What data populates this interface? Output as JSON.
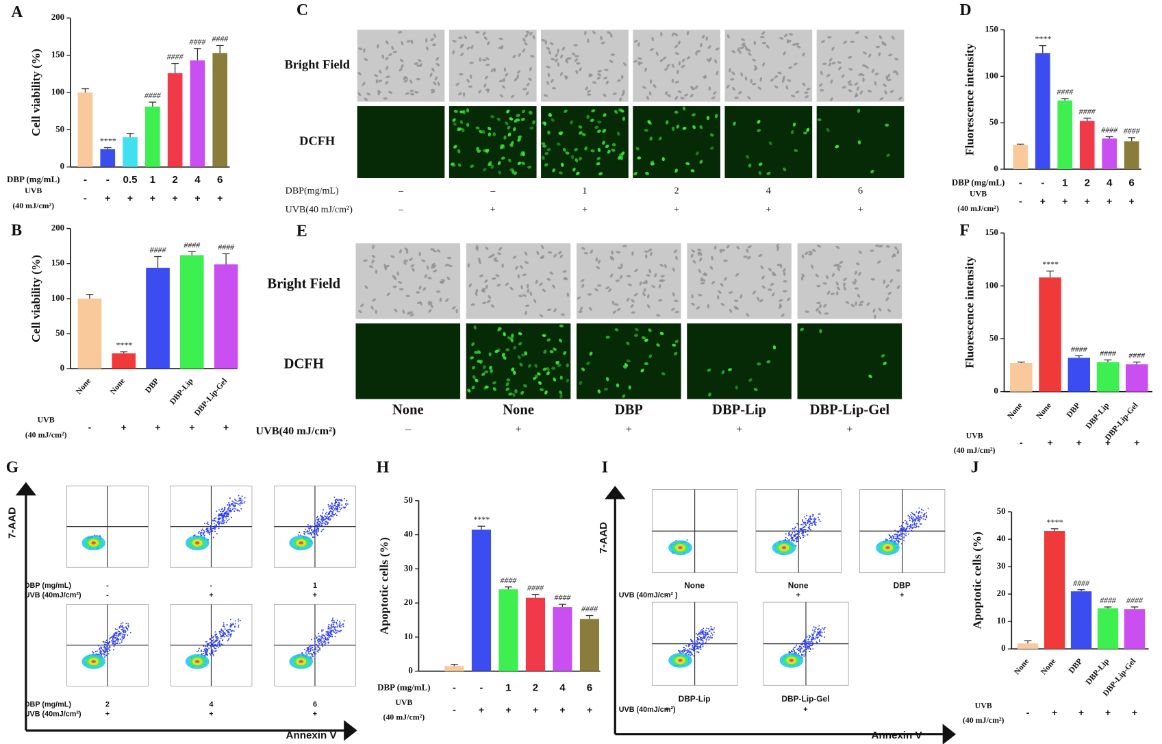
{
  "chart_data": [
    {
      "type": "bar",
      "panel": "A",
      "ylabel": "Cell viability (%)",
      "category_label": "DBP (mg/mL)",
      "categories": [
        "-",
        "-",
        "0.5",
        "1",
        "2",
        "4",
        "6"
      ],
      "values": [
        100,
        24,
        40,
        81,
        126,
        143,
        153
      ],
      "errors": [
        5,
        2,
        5,
        6,
        13,
        16,
        10
      ],
      "colors": [
        "#f9c89b",
        "#3b4cf0",
        "#41e0f0",
        "#3df04f",
        "#f03a4a",
        "#c94ff0",
        "#8a7c3a"
      ],
      "annotations": [
        null,
        "****",
        null,
        "####",
        "####",
        "####",
        "####"
      ],
      "row_label": [
        "UVB",
        "(40 mJ/cm²)"
      ],
      "row": [
        "-",
        "+",
        "+",
        "+",
        "+",
        "+",
        "+"
      ],
      "ylim": [
        0,
        200
      ],
      "yticks": [
        0,
        50,
        100,
        150,
        200
      ]
    },
    {
      "type": "bar",
      "panel": "B",
      "ylabel": "Cell viability (%)",
      "categories": [
        "None",
        "None",
        "DBP",
        "DBP-Lip",
        "DBP-Lip-Gel"
      ],
      "values": [
        100,
        22,
        144,
        162,
        149
      ],
      "errors": [
        6,
        2,
        16,
        5,
        15
      ],
      "colors": [
        "#f9c89b",
        "#f03a3a",
        "#3b4cf0",
        "#3df04f",
        "#c94ff0"
      ],
      "annotations": [
        null,
        "****",
        "####",
        "####",
        "####"
      ],
      "row_label": [
        "UVB",
        "(40 mJ/cm²)"
      ],
      "row": [
        "-",
        "+",
        "+",
        "+",
        "+"
      ],
      "ylim": [
        0,
        200
      ],
      "yticks": [
        0,
        50,
        100,
        150,
        200
      ]
    },
    {
      "type": "bar",
      "panel": "D",
      "ylabel": "Fluorescence intensity",
      "category_label": "DBP (mg/mL)",
      "categories": [
        "-",
        "-",
        "1",
        "2",
        "4",
        "6"
      ],
      "values": [
        26,
        125,
        74,
        52,
        33,
        30
      ],
      "errors": [
        1,
        8,
        2,
        3,
        2,
        4
      ],
      "colors": [
        "#f9c89b",
        "#3b4cf0",
        "#3df04f",
        "#f03a4a",
        "#c94ff0",
        "#8a7c3a"
      ],
      "annotations": [
        null,
        "****",
        "####",
        "####",
        "####",
        "####"
      ],
      "row_label": [
        "UVB",
        "(40 mJ/cm²)"
      ],
      "row": [
        "-",
        "+",
        "+",
        "+",
        "+",
        "+"
      ],
      "ylim": [
        0,
        150
      ],
      "yticks": [
        0,
        50,
        100,
        150
      ]
    },
    {
      "type": "bar",
      "panel": "F",
      "ylabel": "Fluorescence intensity",
      "categories": [
        "None",
        "None",
        "DBP",
        "DBP-Lip",
        "DBP-Lip-Gel"
      ],
      "values": [
        27,
        108,
        32,
        28,
        26
      ],
      "errors": [
        1,
        6,
        2,
        2,
        2
      ],
      "colors": [
        "#f9c89b",
        "#f03a3a",
        "#3b4cf0",
        "#3df04f",
        "#c94ff0"
      ],
      "annotations": [
        null,
        "****",
        "####",
        "####",
        "####"
      ],
      "row_label": [
        "UVB",
        "(40 mJ/cm²)"
      ],
      "row": [
        "-",
        "+",
        "+",
        "+",
        "+"
      ],
      "ylim": [
        0,
        150
      ],
      "yticks": [
        0,
        50,
        100,
        150
      ]
    },
    {
      "type": "bar",
      "panel": "H",
      "ylabel": "Apoptotic cells (%)",
      "category_label": "DBP (mg/mL)",
      "categories": [
        "-",
        "-",
        "1",
        "2",
        "4",
        "6"
      ],
      "values": [
        1.5,
        41.5,
        24,
        21.5,
        18.8,
        15.3
      ],
      "errors": [
        0.5,
        1,
        0.7,
        1,
        0.8,
        1
      ],
      "colors": [
        "#f9c89b",
        "#3b4cf0",
        "#3df04f",
        "#f03a4a",
        "#c94ff0",
        "#8a7c3a"
      ],
      "annotations": [
        null,
        "****",
        "####",
        "####",
        "####",
        "####"
      ],
      "row_label": [
        "UVB",
        "(40 mJ/cm²)"
      ],
      "row": [
        "-",
        "+",
        "+",
        "+",
        "+",
        "+"
      ],
      "ylim": [
        0,
        50
      ],
      "yticks": [
        0,
        10,
        20,
        30,
        40,
        50
      ]
    },
    {
      "type": "bar",
      "panel": "J",
      "ylabel": "Apoptotic cells (%)",
      "categories": [
        "None",
        "None",
        "DBP",
        "DBP-Lip",
        "DBP-Lip-Gel"
      ],
      "values": [
        2,
        43,
        21,
        14.8,
        14.5
      ],
      "errors": [
        1,
        0.8,
        0.6,
        0.5,
        0.8
      ],
      "colors": [
        "#f9c89b",
        "#f03a3a",
        "#3b4cf0",
        "#3df04f",
        "#c94ff0"
      ],
      "annotations": [
        null,
        "****",
        "####",
        "####",
        "####"
      ],
      "row_label": [
        "UVB",
        "(40 mJ/cm²)"
      ],
      "row": [
        "-",
        "+",
        "+",
        "+",
        "+"
      ],
      "ylim": [
        0,
        50
      ],
      "yticks": [
        0,
        10,
        20,
        30,
        40,
        50
      ]
    }
  ],
  "micrographs": [
    {
      "panel": "C",
      "rows": [
        "Bright Field",
        "DCFH"
      ],
      "dose_label": "DBP(mg/mL)",
      "doses": [
        "–",
        "–",
        "1",
        "2",
        "4",
        "6"
      ],
      "uvb_label": "UVB(40 mJ/cm²)",
      "uvb": [
        "–",
        "+",
        "+",
        "+",
        "+",
        "+"
      ]
    },
    {
      "panel": "E",
      "rows": [
        "Bright Field",
        "DCFH"
      ],
      "columns": [
        "None",
        "None",
        "DBP",
        "DBP-Lip",
        "DBP-Lip-Gel"
      ],
      "uvb_label": "UVB(40 mJ/cm²)",
      "uvb": [
        "–",
        "+",
        "+",
        "+",
        "+"
      ]
    }
  ],
  "flow": [
    {
      "panel": "G",
      "y_axis": "7-AAD",
      "x_axis": "Annexin V",
      "groups": [
        {
          "dose_label": "DBP (mg/mL)",
          "uvb_label": "UVB (40mJ/cm²)",
          "doses": [
            "-",
            "-",
            "1"
          ],
          "uvb": [
            "-",
            "+",
            "+"
          ]
        },
        {
          "dose_label": "DBP (mg/mL)",
          "uvb_label": "UVB (40mJ/cm²)",
          "doses": [
            "2",
            "4",
            "6"
          ],
          "uvb": [
            "+",
            "+",
            "+"
          ]
        }
      ]
    },
    {
      "panel": "I",
      "y_axis": "7-AAD",
      "x_axis": "Annexin V",
      "groups": [
        {
          "uvb_label": "UVB (40mJ/cm² )",
          "names": [
            "None",
            "None",
            "DBP"
          ],
          "uvb": [
            "-",
            "+",
            "+"
          ]
        },
        {
          "uvb_label": "UVB (40mJ/cm²)",
          "names": [
            "DBP-Lip",
            "DBP-Lip-Gel"
          ],
          "uvb": [
            "+",
            "+"
          ]
        }
      ]
    }
  ]
}
